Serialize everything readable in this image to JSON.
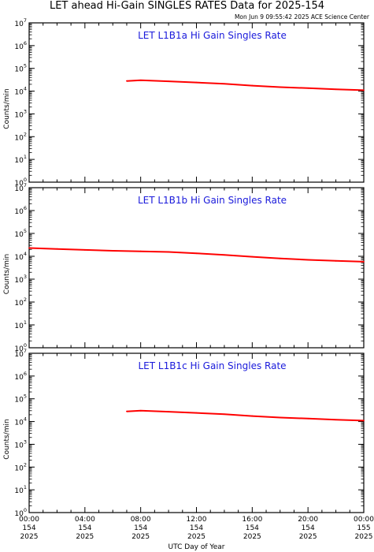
{
  "header": {
    "title": "LET ahead Hi-Gain SINGLES RATES Data for 2025-154",
    "timestamp": "Mon Jun  9 09:55:42 2025 ACE Science Center"
  },
  "colors": {
    "series": "#ff0000",
    "panel_title": "#1a1adb",
    "axes": "#000000"
  },
  "chart_data": [
    {
      "type": "line",
      "title": "LET L1B1a Hi Gain Singles Rate",
      "ylabel": "Counts/min",
      "xlabel": "UTC Day of Year",
      "yscale": "log",
      "ylim": [
        1,
        10000000
      ],
      "xlim": [
        0,
        24
      ],
      "series": [
        {
          "x": [
            7.0,
            8.0,
            10.0,
            12.0,
            14.0,
            16.0,
            18.0,
            20.0,
            22.0,
            24.0
          ],
          "values": [
            28000,
            30000,
            27000,
            24000,
            21000,
            17500,
            15000,
            13500,
            12000,
            11000
          ]
        }
      ]
    },
    {
      "type": "line",
      "title": "LET L1B1b Hi Gain Singles Rate",
      "ylabel": "Counts/min",
      "xlabel": "UTC Day of Year",
      "yscale": "log",
      "ylim": [
        1,
        10000000
      ],
      "xlim": [
        0,
        24
      ],
      "series": [
        {
          "x": [
            0.0,
            2.0,
            4.0,
            6.0,
            8.0,
            10.0,
            12.0,
            14.0,
            16.0,
            18.0,
            20.0,
            22.0,
            24.0
          ],
          "values": [
            23000,
            21000,
            19000,
            17500,
            16500,
            15500,
            13500,
            11500,
            9500,
            8000,
            7000,
            6300,
            5800
          ]
        }
      ]
    },
    {
      "type": "line",
      "title": "LET L1B1c Hi Gain Singles Rate",
      "ylabel": "Counts/min",
      "xlabel": "UTC Day of Year",
      "yscale": "log",
      "ylim": [
        1,
        10000000
      ],
      "xlim": [
        0,
        24
      ],
      "series": [
        {
          "x": [
            7.0,
            8.0,
            10.0,
            12.0,
            14.0,
            16.0,
            18.0,
            20.0,
            22.0,
            24.0
          ],
          "values": [
            28000,
            30000,
            27000,
            24000,
            21000,
            17500,
            15000,
            13500,
            12000,
            11000
          ]
        }
      ]
    }
  ],
  "x_ticks": [
    {
      "time": "00:00",
      "day": "154",
      "year": "2025"
    },
    {
      "time": "04:00",
      "day": "154",
      "year": "2025"
    },
    {
      "time": "08:00",
      "day": "154",
      "year": "2025"
    },
    {
      "time": "12:00",
      "day": "154",
      "year": "2025"
    },
    {
      "time": "16:00",
      "day": "154",
      "year": "2025"
    },
    {
      "time": "20:00",
      "day": "154",
      "year": "2025"
    },
    {
      "time": "00:00",
      "day": "155",
      "year": "2025"
    }
  ],
  "y_tick_exponents": [
    "0",
    "1",
    "2",
    "3",
    "4",
    "5",
    "6",
    "7"
  ],
  "y_tick_base": "10"
}
